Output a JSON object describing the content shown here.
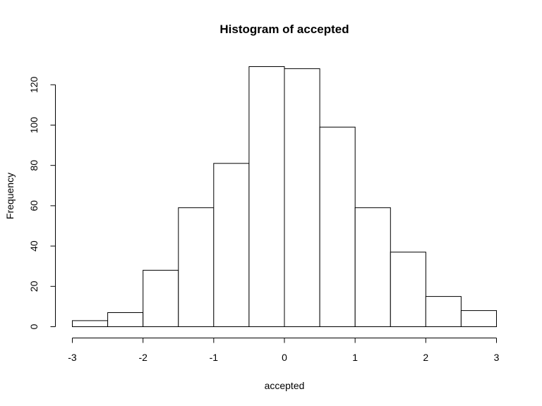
{
  "chart_data": {
    "type": "bar",
    "title": "Histogram of accepted",
    "xlabel": "accepted",
    "ylabel": "Frequency",
    "bin_edges": [
      -3,
      -2.5,
      -2,
      -1.5,
      -1,
      -0.5,
      0,
      0.5,
      1,
      1.5,
      2,
      2.5,
      3
    ],
    "values": [
      3,
      7,
      28,
      59,
      81,
      129,
      128,
      99,
      59,
      37,
      15,
      8
    ],
    "xlim": [
      -3,
      3
    ],
    "ylim": [
      0,
      129
    ],
    "x_ticks": [
      -3,
      -2,
      -1,
      0,
      1,
      2,
      3
    ],
    "x_tick_labels": [
      "-3",
      "-2",
      "-1",
      "0",
      "1",
      "2",
      "3"
    ],
    "y_ticks": [
      0,
      20,
      40,
      60,
      80,
      100,
      120
    ],
    "y_tick_labels": [
      "0",
      "20",
      "40",
      "60",
      "80",
      "100",
      "120"
    ],
    "grid": false,
    "bar_fill": "#ffffff",
    "bar_stroke": "#000000"
  }
}
